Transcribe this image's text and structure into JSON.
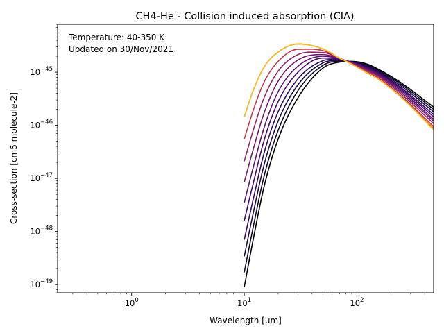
{
  "chart_data": {
    "type": "line",
    "title": "CH4-He - Collision induced absorption (CIA)",
    "xlabel": "Wavelength [um]",
    "ylabel": "Cross-section [cm5 molecule-2]",
    "x_scale": "log",
    "y_scale": "log",
    "xlim": [
      0.22,
      480
    ],
    "ylim": [
      7e-50,
      8e-45
    ],
    "x_ticks": [
      {
        "value": 1,
        "base": "10",
        "exp": "0"
      },
      {
        "value": 10,
        "base": "10",
        "exp": "1"
      },
      {
        "value": 100,
        "base": "10",
        "exp": "2"
      }
    ],
    "y_ticks": [
      {
        "value": 1e-45,
        "base": "10",
        "exp": "−45"
      },
      {
        "value": 1e-46,
        "base": "10",
        "exp": "−46"
      },
      {
        "value": 1e-47,
        "base": "10",
        "exp": "−47"
      },
      {
        "value": 1e-48,
        "base": "10",
        "exp": "−48"
      },
      {
        "value": 1e-49,
        "base": "10",
        "exp": "−49"
      }
    ],
    "grid": false,
    "annotations": [
      "Temperature: 40-350 K",
      "Updated on 30/Nov/2021"
    ],
    "colormap": "inferno",
    "series": [
      {
        "color": "#000000",
        "x": [
          10,
          12,
          15,
          20,
          30,
          50,
          70,
          90,
          120,
          160,
          250,
          480
        ],
        "y": [
          9e-50,
          7e-49,
          7e-48,
          5.5e-47,
          3.3e-46,
          1.2e-45,
          1.55e-45,
          1.6e-45,
          1.45e-45,
          1.1e-45,
          6.2e-46,
          2.2e-46
        ]
      },
      {
        "color": "#0d0829",
        "x": [
          10,
          12,
          15,
          20,
          30,
          50,
          70,
          90,
          120,
          160,
          250,
          480
        ],
        "y": [
          1.7e-49,
          1.2e-48,
          1.1e-47,
          8e-47,
          4.5e-46,
          1.35e-45,
          1.6e-45,
          1.58e-45,
          1.4e-45,
          1.05e-45,
          5.8e-46,
          2e-46
        ]
      },
      {
        "color": "#1b0c41",
        "x": [
          10,
          12,
          15,
          20,
          30,
          50,
          70,
          90,
          120,
          160,
          250,
          480
        ],
        "y": [
          3.4e-49,
          2.2e-48,
          1.8e-47,
          1.2e-46,
          5.8e-46,
          1.5e-45,
          1.65e-45,
          1.57e-45,
          1.35e-45,
          1e-45,
          5.4e-46,
          1.8e-46
        ]
      },
      {
        "color": "#2f0a5b",
        "x": [
          10,
          12,
          15,
          20,
          30,
          50,
          70,
          90,
          120,
          160,
          250,
          480
        ],
        "y": [
          7e-49,
          4e-48,
          3e-47,
          1.8e-46,
          7.5e-46,
          1.65e-45,
          1.7e-45,
          1.56e-45,
          1.3e-45,
          9.6e-46,
          5e-46,
          1.6e-46
        ]
      },
      {
        "color": "#450a69",
        "x": [
          10,
          12,
          15,
          20,
          30,
          50,
          70,
          90,
          120,
          160,
          250,
          480
        ],
        "y": [
          1.6e-48,
          8e-48,
          5.2e-47,
          2.8e-46,
          1e-45,
          1.85e-45,
          1.75e-45,
          1.55e-45,
          1.25e-45,
          9.2e-46,
          4.7e-46,
          1.45e-46
        ]
      },
      {
        "color": "#5c126e",
        "x": [
          10,
          12,
          15,
          20,
          30,
          50,
          70,
          90,
          120,
          160,
          250,
          480
        ],
        "y": [
          3.5e-48,
          1.6e-47,
          9e-47,
          4.3e-46,
          1.3e-45,
          2e-45,
          1.8e-45,
          1.53e-45,
          1.2e-45,
          8.8e-46,
          4.4e-46,
          1.3e-46
        ]
      },
      {
        "color": "#71196e",
        "x": [
          10,
          12,
          15,
          20,
          30,
          50,
          70,
          90,
          120,
          160,
          250,
          480
        ],
        "y": [
          8.5e-48,
          3.5e-47,
          1.7e-46,
          6.8e-46,
          1.7e-45,
          2.15e-45,
          1.8e-45,
          1.5e-45,
          1.15e-45,
          8.4e-46,
          4.1e-46,
          1.2e-46
        ]
      },
      {
        "color": "#932667",
        "x": [
          10,
          12,
          15,
          20,
          30,
          50,
          70,
          90,
          120,
          160,
          250,
          480
        ],
        "y": [
          2.1e-47,
          8e-47,
          3.3e-46,
          1.05e-45,
          2.15e-45,
          2.35e-45,
          1.8e-45,
          1.48e-45,
          1.1e-45,
          8e-46,
          3.8e-46,
          1.08e-46
        ]
      },
      {
        "color": "#c13d4e",
        "x": [
          10,
          12,
          15,
          20,
          30,
          50,
          70,
          90,
          120,
          160,
          250,
          480
        ],
        "y": [
          5.5e-47,
          1.9e-46,
          6.5e-46,
          1.6e-45,
          2.7e-45,
          2.55e-45,
          1.85e-45,
          1.45e-45,
          1.05e-45,
          7.5e-46,
          3.5e-46,
          9.5e-47
        ]
      },
      {
        "color": "#e45a31",
        "x": [
          10,
          12,
          15,
          20,
          30,
          50,
          70,
          90,
          120,
          160,
          250,
          480
        ],
        "y": [
          1.45e-46,
          4.5e-46,
          1.25e-45,
          2.4e-45,
          3.4e-45,
          2.75e-45,
          1.85e-45,
          1.42e-45,
          1e-45,
          7.1e-46,
          3.3e-46,
          8.8e-47
        ]
      },
      {
        "color": "#f48a12",
        "x": [
          10,
          12,
          15,
          20,
          30,
          50,
          70,
          90,
          120,
          160,
          250,
          480
        ],
        "y": [
          1.45e-46,
          4.5e-46,
          1.25e-45,
          2.4e-45,
          3.4e-45,
          2.75e-45,
          1.85e-45,
          1.42e-45,
          1e-45,
          7.1e-46,
          3.3e-46,
          8.5e-47
        ]
      },
      {
        "color": "#f2c12d",
        "x": [
          10,
          12,
          15,
          20,
          30,
          50,
          70,
          90,
          120,
          160,
          250,
          480
        ],
        "y": [
          1.45e-46,
          4.5e-46,
          1.25e-45,
          2.4e-45,
          3.4e-45,
          2.75e-45,
          1.85e-45,
          1.42e-45,
          1e-45,
          7.1e-46,
          3.3e-46,
          8.2e-47
        ]
      }
    ]
  }
}
